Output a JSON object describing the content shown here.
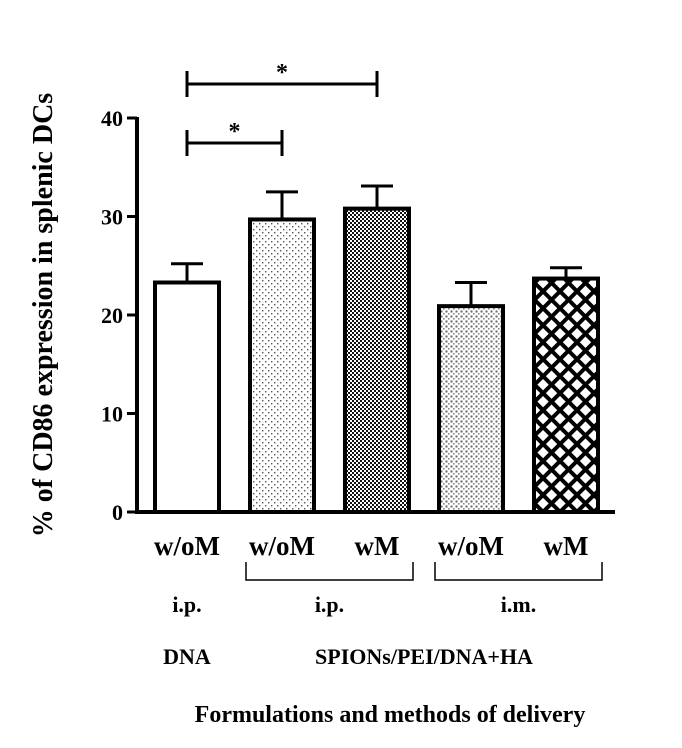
{
  "chart_data": {
    "type": "bar",
    "ylabel": "% of CD86 expression in splenic DCs",
    "xlabel": "Formulations and methods of delivery",
    "ylim": [
      0,
      40
    ],
    "yticks": [
      0,
      10,
      20,
      30,
      40
    ],
    "grid": false,
    "categories": [
      "w/oM",
      "w/oM",
      "wM",
      "w/oM",
      "wM"
    ],
    "values": [
      23.3,
      29.7,
      30.8,
      20.9,
      23.7
    ],
    "errors": [
      1.9,
      2.8,
      2.3,
      2.4,
      1.1
    ],
    "patterns": [
      "none",
      "sparse-dots",
      "dense-checker",
      "dots",
      "crosshatch"
    ],
    "routes": [
      {
        "label": "i.p.",
        "from": 0,
        "to": 0,
        "bracket": false
      },
      {
        "label": "i.p.",
        "from": 1,
        "to": 2,
        "bracket": true
      },
      {
        "label": "i.m.",
        "from": 3,
        "to": 4,
        "bracket": true
      }
    ],
    "groups": [
      {
        "label": "DNA",
        "from": 0,
        "to": 0
      },
      {
        "label": "SPIONs/PEI/DNA+HA",
        "from": 1,
        "to": 4
      }
    ],
    "significance": [
      {
        "from": 0,
        "to": 1,
        "label": "*"
      },
      {
        "from": 0,
        "to": 2,
        "label": "*"
      }
    ]
  }
}
